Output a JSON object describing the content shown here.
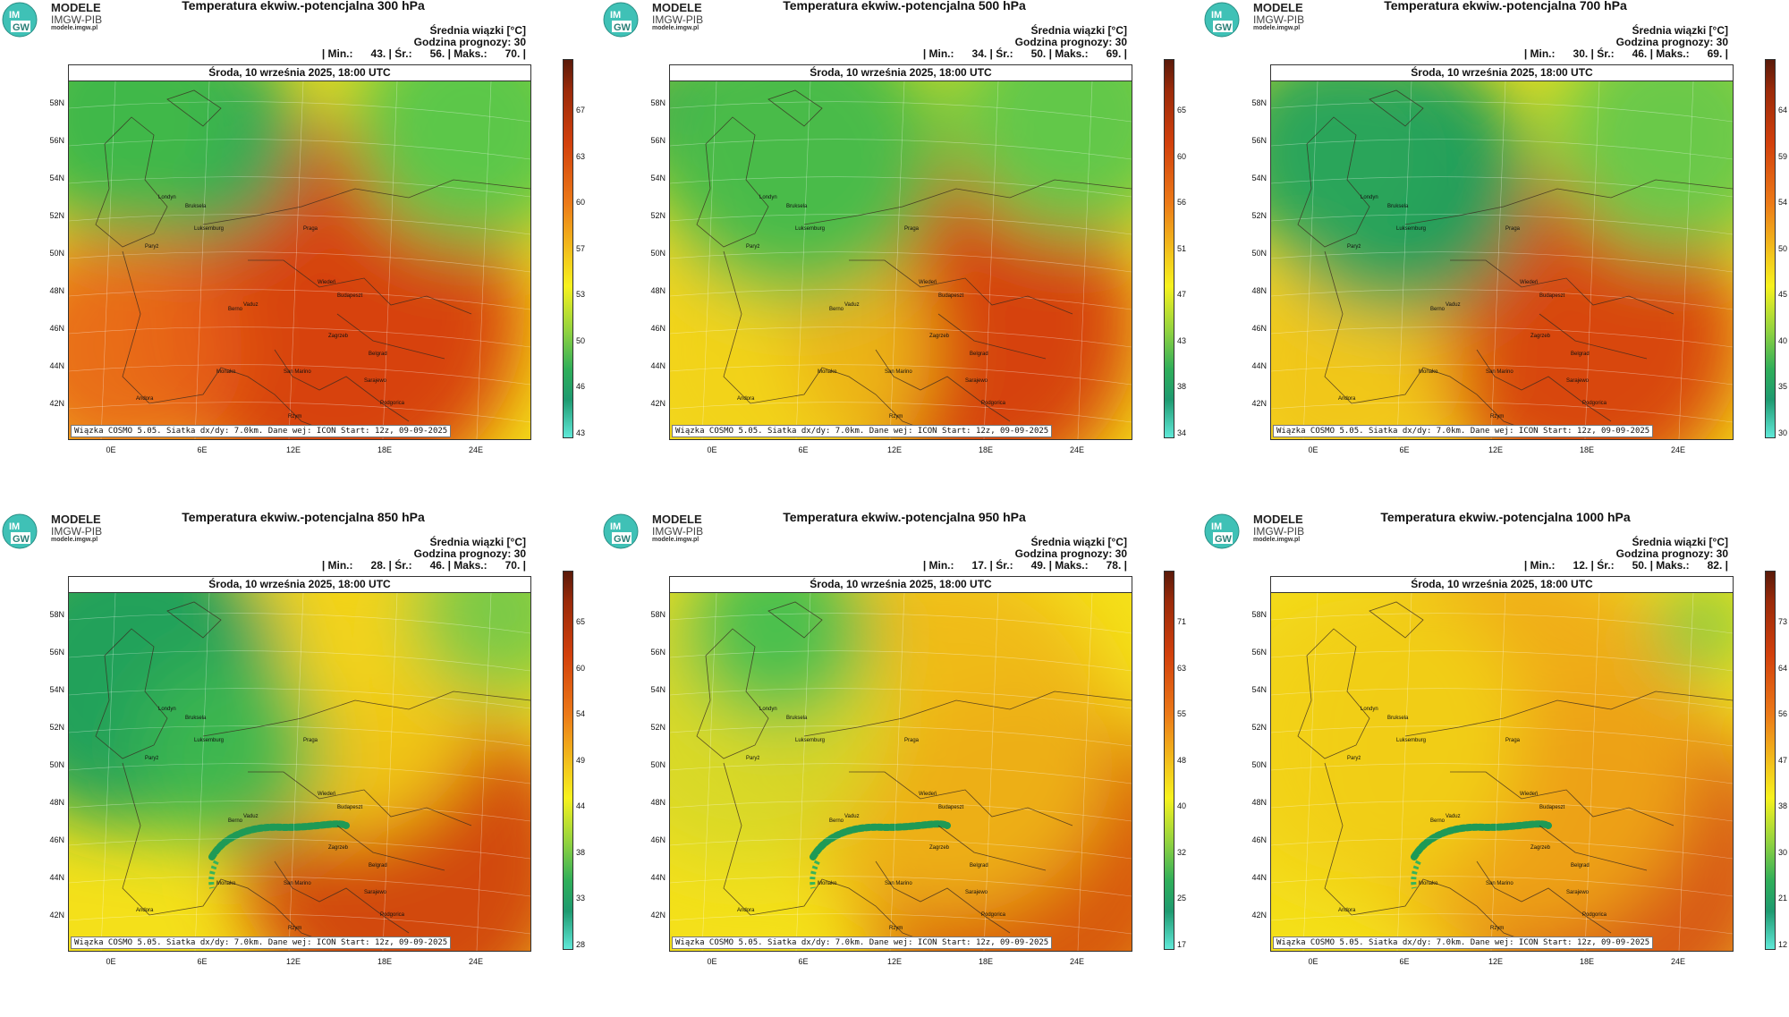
{
  "logo": {
    "line1": "MODELE",
    "line2": "IMGW-PIB",
    "line3": "modele.imgw.pl",
    "badge_top": "IM",
    "badge_bottom": "GW"
  },
  "common": {
    "date": "Środa, 10 września 2025, 18:00 UTC",
    "mean_label": "Średnia wiązki [°C]",
    "forecast_hour": "Godzina prognozy: 30",
    "credit": "Wiązka COSMO 5.05. Siatka dx/dy: 7.0km. Dane wej: ICON Start: 12z, 09-09-2025",
    "lat_labels": [
      "58N",
      "56N",
      "54N",
      "52N",
      "50N",
      "48N",
      "46N",
      "44N",
      "42N"
    ],
    "lon_labels": [
      "0E",
      "6E",
      "12E",
      "18E",
      "24E"
    ],
    "cities": [
      "Londyn",
      "Bruksela",
      "Paryż",
      "Luksemburg",
      "Praga",
      "Wiedeń",
      "Budapeszt",
      "Berno",
      "Vaduz",
      "Zagrzeb",
      "Belgrad",
      "Monako",
      "San Marino",
      "Sarajewo",
      "Andora",
      "Rzym",
      "Podgorica"
    ]
  },
  "panels": [
    {
      "title": "Temperatura ekwiw.-potencjalna 300 hPa",
      "stats": "| Min.:      43. | Śr.:      56. | Maks.:      70. |",
      "cbar_ticks": [
        "67",
        "63",
        "60",
        "57",
        "53",
        "50",
        "46",
        "43"
      ]
    },
    {
      "title": "Temperatura ekwiw.-potencjalna 500 hPa",
      "stats": "| Min.:      34. | Śr.:      50. | Maks.:      69. |",
      "cbar_ticks": [
        "65",
        "60",
        "56",
        "51",
        "47",
        "43",
        "38",
        "34"
      ]
    },
    {
      "title": "Temperatura ekwiw.-potencjalna 700 hPa",
      "stats": "| Min.:      30. | Śr.:      46. | Maks.:      69. |",
      "cbar_ticks": [
        "64",
        "59",
        "54",
        "50",
        "45",
        "40",
        "35",
        "30"
      ]
    },
    {
      "title": "Temperatura ekwiw.-potencjalna 850 hPa",
      "stats": "| Min.:      28. | Śr.:      46. | Maks.:      70. |",
      "cbar_ticks": [
        "65",
        "60",
        "54",
        "49",
        "44",
        "38",
        "33",
        "28"
      ]
    },
    {
      "title": "Temperatura ekwiw.-potencjalna 950 hPa",
      "stats": "| Min.:      17. | Śr.:      49. | Maks.:      78. |",
      "cbar_ticks": [
        "71",
        "63",
        "55",
        "48",
        "40",
        "32",
        "25",
        "17"
      ]
    },
    {
      "title": "Temperatura ekwiw.-potencjalna 1000 hPa",
      "stats": "| Min.:      12. | Śr.:      50. | Maks.:      82. |",
      "cbar_ticks": [
        "73",
        "64",
        "56",
        "47",
        "38",
        "30",
        "21",
        "12"
      ]
    }
  ],
  "colors": {
    "green_dark": "#1e9a56",
    "green": "#4cc04a",
    "yellow": "#f4e81a",
    "orange": "#f0a020",
    "red": "#e05a10",
    "dark_red": "#c83a0a",
    "cyan": "#60e8d8",
    "brown": "#5a1a0a"
  }
}
